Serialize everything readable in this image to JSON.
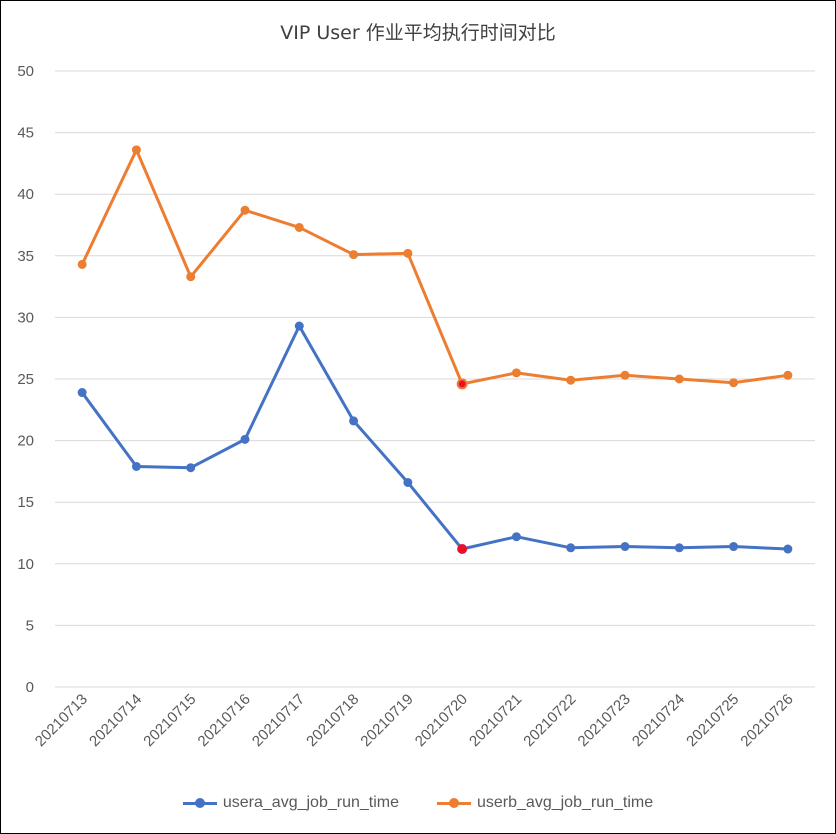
{
  "chart_data": {
    "type": "line",
    "title": "VIP User 作业平均执行时间对比",
    "xlabel": "",
    "ylabel": "",
    "ylim": [
      0,
      50
    ],
    "yticks": [
      0,
      5,
      10,
      15,
      20,
      25,
      30,
      35,
      40,
      45,
      50
    ],
    "grid": true,
    "legend_position": "bottom",
    "categories": [
      "20210713",
      "20210714",
      "20210715",
      "20210716",
      "20210717",
      "20210718",
      "20210719",
      "20210720",
      "20210721",
      "20210722",
      "20210723",
      "20210724",
      "20210725",
      "20210726"
    ],
    "series": [
      {
        "name": "usera_avg_job_run_time",
        "color": "#4472C4",
        "values": [
          23.9,
          17.9,
          17.8,
          20.1,
          29.3,
          21.6,
          16.6,
          11.2,
          12.2,
          11.3,
          11.4,
          11.3,
          11.4,
          11.2
        ],
        "highlight_index": 7,
        "highlight_color": "#E8112D"
      },
      {
        "name": "userb_avg_job_run_time",
        "color": "#ED7D31",
        "values": [
          34.3,
          43.6,
          33.3,
          38.7,
          37.3,
          35.1,
          35.2,
          24.6,
          25.5,
          24.9,
          25.3,
          25.0,
          24.7,
          25.3
        ],
        "highlight_index": 7,
        "highlight_color": "#E8112D"
      }
    ]
  }
}
